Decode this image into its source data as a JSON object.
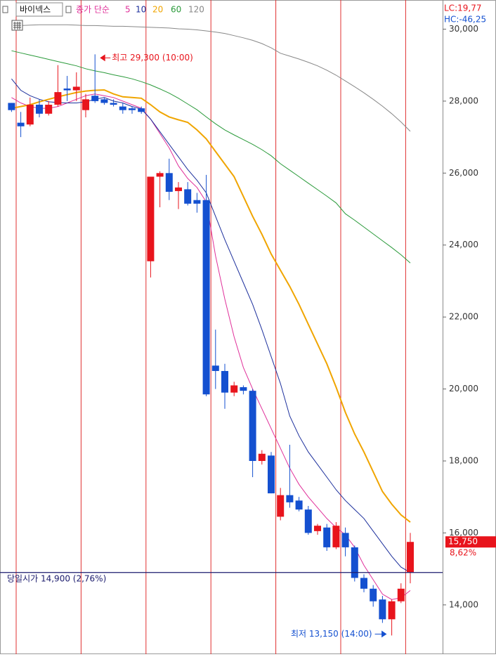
{
  "chart_data": {
    "type": "candlestick",
    "title": "바이넥스",
    "categories": [
      null,
      null,
      null,
      null,
      null,
      null,
      null,
      null,
      null,
      null,
      null,
      null,
      null,
      null,
      null,
      null,
      null,
      null,
      null,
      null,
      null,
      null,
      null,
      null,
      null,
      null,
      null,
      null,
      null,
      null,
      null,
      null,
      null,
      null,
      null,
      null,
      null,
      null,
      null,
      null,
      null,
      null,
      null,
      null
    ],
    "open": [
      27950,
      27400,
      27350,
      27900,
      27650,
      27900,
      28350,
      28300,
      27750,
      28150,
      28050,
      27950,
      27850,
      27800,
      27800,
      23550,
      25900,
      26000,
      25500,
      25550,
      25250,
      25250,
      20650,
      20500,
      19900,
      20050,
      19950,
      18000,
      18150,
      16450,
      17050,
      16900,
      16650,
      16050,
      16150,
      15600,
      16000,
      15600,
      14750,
      14450,
      14150,
      13600,
      14100,
      14900
    ],
    "high": [
      27950,
      27700,
      28100,
      28050,
      28000,
      29000,
      28700,
      28800,
      28200,
      29300,
      28100,
      28050,
      27950,
      27850,
      27850,
      25900,
      26050,
      26400,
      25750,
      25750,
      25450,
      25950,
      21650,
      20700,
      20200,
      20100,
      20000,
      18300,
      18250,
      17250,
      18450,
      17000,
      16750,
      16250,
      16250,
      16300,
      16150,
      15650,
      14850,
      14550,
      14250,
      14150,
      14600,
      16000
    ],
    "low": [
      27700,
      27000,
      27300,
      27550,
      27600,
      27850,
      28000,
      28000,
      27550,
      27950,
      27900,
      27850,
      27650,
      27650,
      27650,
      23100,
      25050,
      25250,
      25000,
      25100,
      24900,
      19800,
      20000,
      19450,
      19800,
      19850,
      17550,
      17900,
      17100,
      16350,
      16700,
      16600,
      15950,
      15950,
      15500,
      15550,
      15350,
      14650,
      14350,
      13950,
      13500,
      13150,
      14050,
      14600
    ],
    "close": [
      27750,
      27300,
      27900,
      27650,
      27900,
      28250,
      28300,
      28400,
      28050,
      28000,
      27950,
      27900,
      27750,
      27750,
      27700,
      25900,
      26000,
      25480,
      25600,
      25150,
      25150,
      19850,
      20500,
      19900,
      20100,
      19950,
      18000,
      18200,
      17100,
      17050,
      16850,
      16650,
      16000,
      16200,
      15600,
      16200,
      15600,
      14750,
      14450,
      14100,
      13600,
      14100,
      14450,
      15750
    ],
    "up_color": "#e8141c",
    "down_color": "#1450d0",
    "ma_label": "종가 단순",
    "lines": [
      {
        "name": "5",
        "color": "#e0309a",
        "values": [
          28100,
          27950,
          27850,
          27800,
          27800,
          27850,
          27950,
          28050,
          28150,
          28200,
          28150,
          28100,
          28000,
          27900,
          27800,
          27500,
          27100,
          26700,
          26200,
          25850,
          25600,
          25200,
          23700,
          22500,
          21450,
          20600,
          20000,
          19450,
          18900,
          18350,
          17800,
          17350,
          17000,
          16700,
          16400,
          16150,
          15950,
          15600,
          15100,
          14700,
          14300,
          14150,
          14200,
          14400
        ]
      },
      {
        "name": "10",
        "color": "#1c2f9c",
        "values": [
          28620,
          28300,
          28150,
          28050,
          27980,
          27960,
          27950,
          27950,
          27980,
          28050,
          28100,
          28000,
          27950,
          27850,
          27780,
          27500,
          27150,
          26800,
          26450,
          26100,
          25800,
          25450,
          24800,
          24150,
          23550,
          22950,
          22350,
          21650,
          20900,
          20150,
          19250,
          18700,
          18250,
          17900,
          17550,
          17200,
          16900,
          16650,
          16400,
          16050,
          15700,
          15350,
          15050,
          14900
        ]
      },
      {
        "name": "20",
        "color": "#f0a500",
        "values": [
          27800,
          27850,
          27900,
          27980,
          28050,
          28120,
          28180,
          28240,
          28280,
          28300,
          28310,
          28200,
          28120,
          28100,
          28080,
          27900,
          27700,
          27560,
          27480,
          27410,
          27200,
          26950,
          26600,
          26250,
          25900,
          25350,
          24800,
          24300,
          23750,
          23300,
          22850,
          22350,
          21800,
          21250,
          20700,
          20050,
          19350,
          18750,
          18250,
          17700,
          17150,
          16800,
          16500,
          16300
        ]
      },
      {
        "name": "60",
        "color": "#2a9a3a",
        "values": [
          29400,
          29340,
          29280,
          29220,
          29160,
          29100,
          29040,
          28980,
          28900,
          28840,
          28790,
          28730,
          28680,
          28620,
          28540,
          28450,
          28340,
          28220,
          28080,
          27920,
          27760,
          27560,
          27370,
          27200,
          27060,
          26930,
          26800,
          26650,
          26480,
          26260,
          26080,
          25900,
          25720,
          25540,
          25360,
          25170,
          24870,
          24690,
          24500,
          24310,
          24120,
          23930,
          23730,
          23500
        ]
      },
      {
        "name": "120",
        "color": "#888888",
        "values": [
          30100,
          30100,
          30110,
          30120,
          30120,
          30120,
          30120,
          30110,
          30100,
          30100,
          30090,
          30080,
          30080,
          30070,
          30060,
          30050,
          30040,
          30030,
          30010,
          30000,
          29980,
          29950,
          29920,
          29880,
          29820,
          29760,
          29690,
          29600,
          29480,
          29330,
          29250,
          29170,
          29080,
          28980,
          28860,
          28720,
          28560,
          28400,
          28230,
          28050,
          27860,
          27650,
          27420,
          27160
        ]
      }
    ],
    "ylim": [
      12630,
      30810
    ],
    "yticks": [
      {
        "value": 14000,
        "label": "14,000"
      },
      {
        "value": 16000,
        "label": "16,000"
      },
      {
        "value": 18000,
        "label": "18,000"
      },
      {
        "value": 20000,
        "label": "20,000"
      },
      {
        "value": 22000,
        "label": "22,000"
      },
      {
        "value": 24000,
        "label": "24,000"
      },
      {
        "value": 26000,
        "label": "26,000"
      },
      {
        "value": 28000,
        "label": "28,000"
      },
      {
        "value": 30000,
        "label": "30,000"
      }
    ],
    "high_note": {
      "label": "최고 29,300 (10:00)",
      "value": 29300,
      "color": "#e8141c"
    },
    "low_note": {
      "label": "최저 13,150 (14:00)",
      "value": 13150,
      "color": "#1450d0"
    },
    "open_line": {
      "label": "당일시가 14,900 (2,76%)",
      "value": 14900,
      "color": "#1c1c6e"
    },
    "last_price": {
      "label": "15,750",
      "value": 15750,
      "change": "8,62%",
      "color": "#e8141c"
    },
    "lc": "LC:19,77",
    "hc": "HC:-46,25"
  }
}
